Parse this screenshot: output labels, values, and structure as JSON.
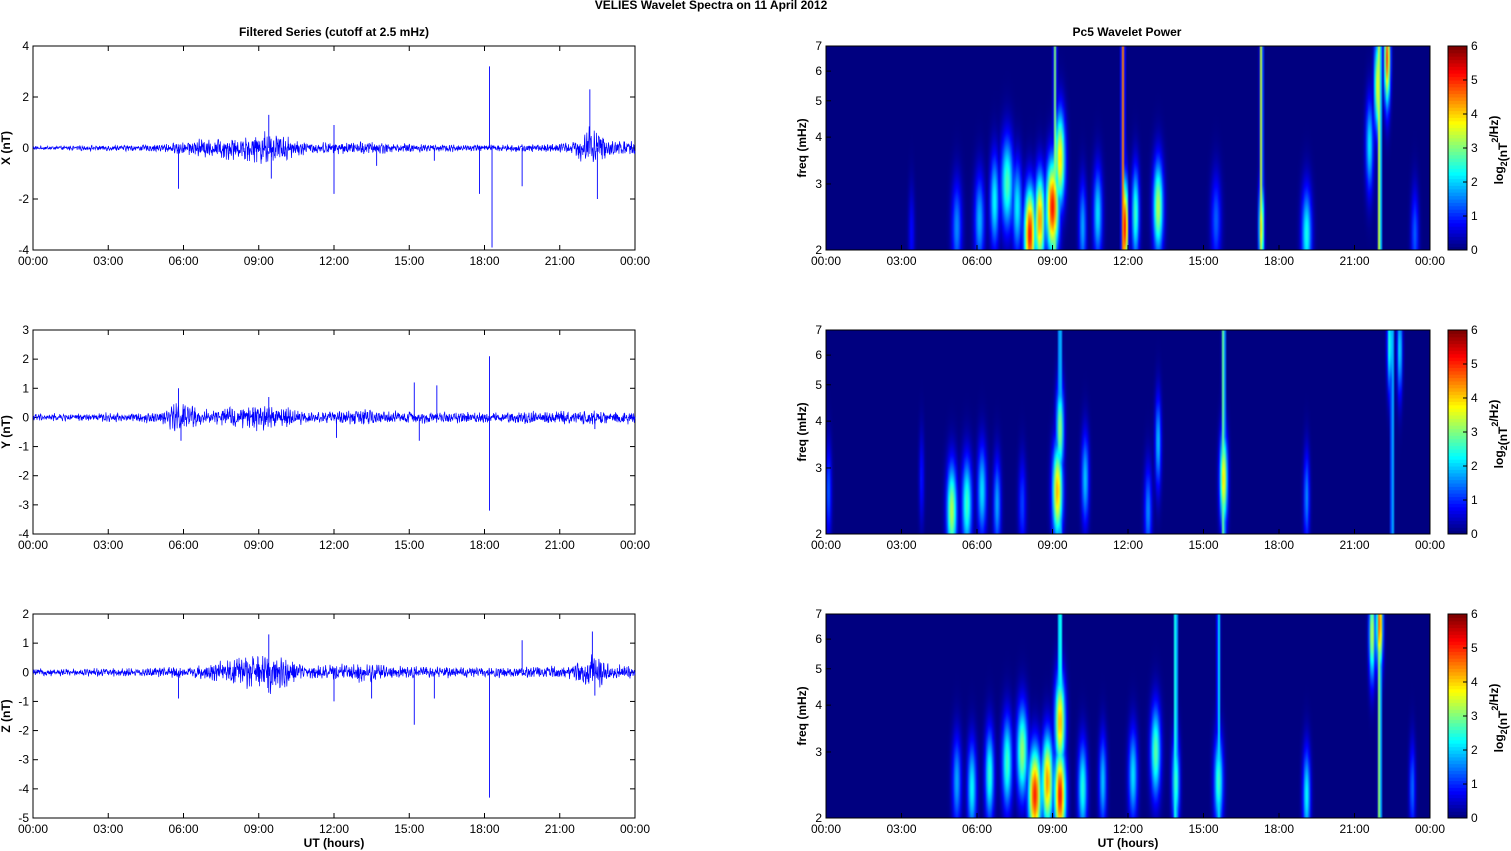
{
  "figure": {
    "title": "VELIES Wavelet Spectra on 11 April     2012"
  },
  "time_ticks": [
    "00:00",
    "03:00",
    "06:00",
    "09:00",
    "12:00",
    "15:00",
    "18:00",
    "21:00",
    "00:00"
  ],
  "chart_data": [
    {
      "type": "line",
      "panel": "X-series",
      "title": "Filtered Series (cutoff at 2.5 mHz)",
      "xlabel": "",
      "ylabel": "X (nT)",
      "ylim": [
        -4,
        4
      ],
      "yticks": [
        -4,
        -2,
        0,
        2,
        4
      ],
      "xlim_hours": [
        0,
        24
      ],
      "series": [
        {
          "color": "#0000ff",
          "noise_amp": 0.05
        }
      ],
      "envelope": [
        [
          0,
          0.05
        ],
        [
          5,
          0.1
        ],
        [
          6.5,
          0.25
        ],
        [
          8,
          0.35
        ],
        [
          9.5,
          0.5
        ],
        [
          11,
          0.15
        ],
        [
          13,
          0.2
        ],
        [
          15,
          0.12
        ],
        [
          18,
          0.1
        ],
        [
          21.5,
          0.15
        ],
        [
          22.2,
          0.7
        ],
        [
          23,
          0.25
        ],
        [
          24,
          0.2
        ]
      ],
      "spikes": [
        [
          5.8,
          -1.6
        ],
        [
          9.4,
          1.3
        ],
        [
          9.5,
          -1.2
        ],
        [
          12,
          -1.8
        ],
        [
          12,
          0.9
        ],
        [
          13.7,
          -0.7
        ],
        [
          16,
          -0.5
        ],
        [
          17.8,
          -1.8
        ],
        [
          18.2,
          3.2
        ],
        [
          18.3,
          -3.9
        ],
        [
          19.5,
          -1.5
        ],
        [
          22.2,
          2.3
        ],
        [
          22.5,
          -2.0
        ]
      ]
    },
    {
      "type": "line",
      "panel": "Y-series",
      "xlabel": "",
      "ylabel": "Y (nT)",
      "ylim": [
        -4,
        3
      ],
      "yticks": [
        -4,
        -3,
        -2,
        -1,
        0,
        1,
        2,
        3
      ],
      "xlim_hours": [
        0,
        24
      ],
      "series": [
        {
          "color": "#0000ff",
          "noise_amp": 0.08
        }
      ],
      "envelope": [
        [
          0,
          0.08
        ],
        [
          5,
          0.12
        ],
        [
          5.8,
          0.4
        ],
        [
          7,
          0.2
        ],
        [
          9.4,
          0.35
        ],
        [
          11,
          0.12
        ],
        [
          13,
          0.2
        ],
        [
          15,
          0.15
        ],
        [
          18,
          0.12
        ],
        [
          22.5,
          0.2
        ],
        [
          24,
          0.15
        ]
      ],
      "spikes": [
        [
          5.8,
          1.0
        ],
        [
          5.9,
          -0.8
        ],
        [
          9.4,
          0.7
        ],
        [
          12.1,
          -0.7
        ],
        [
          15.2,
          1.2
        ],
        [
          15.4,
          -0.8
        ],
        [
          16.1,
          1.1
        ],
        [
          18.2,
          2.1
        ],
        [
          18.2,
          -3.2
        ],
        [
          22.4,
          -0.4
        ]
      ]
    },
    {
      "type": "line",
      "panel": "Z-series",
      "xlabel": "UT (hours)",
      "ylabel": "Z (nT)",
      "ylim": [
        -5,
        2
      ],
      "yticks": [
        -5,
        -4,
        -3,
        -2,
        -1,
        0,
        1,
        2
      ],
      "xlim_hours": [
        0,
        24
      ],
      "series": [
        {
          "color": "#0000ff",
          "noise_amp": 0.07
        }
      ],
      "envelope": [
        [
          0,
          0.07
        ],
        [
          5,
          0.12
        ],
        [
          7,
          0.2
        ],
        [
          9.4,
          0.55
        ],
        [
          11,
          0.15
        ],
        [
          13,
          0.25
        ],
        [
          15,
          0.15
        ],
        [
          18,
          0.12
        ],
        [
          21.5,
          0.15
        ],
        [
          22.3,
          0.55
        ],
        [
          23,
          0.2
        ],
        [
          24,
          0.15
        ]
      ],
      "spikes": [
        [
          5.8,
          -0.9
        ],
        [
          9.4,
          1.3
        ],
        [
          9.4,
          -0.7
        ],
        [
          12,
          -1.0
        ],
        [
          13.5,
          -0.9
        ],
        [
          15.2,
          -1.8
        ],
        [
          16,
          -0.9
        ],
        [
          18.2,
          -4.3
        ],
        [
          19.5,
          1.1
        ],
        [
          22.3,
          1.4
        ],
        [
          22.4,
          -0.8
        ]
      ]
    },
    {
      "type": "heatmap",
      "panel": "X-wavelet",
      "title": "Pc5 Wavelet Power",
      "xlabel": "",
      "ylabel": "freq (mHz)",
      "ylim": [
        2,
        7
      ],
      "yscale": "log",
      "yticks": [
        2,
        3,
        4,
        5,
        6,
        7
      ],
      "xlim_hours": [
        0,
        24
      ],
      "colorbar": {
        "label": "log2(nT^2/Hz)",
        "label_main": "log",
        "label_sub": "2",
        "label_tail": "(nT",
        "label_sup": "2",
        "label_end": "/Hz)",
        "range": [
          0,
          6
        ],
        "ticks": [
          0,
          1,
          2,
          3,
          4,
          5,
          6
        ]
      },
      "blobs": [
        [
          3.4,
          2.2,
          0.12,
          0.9
        ],
        [
          5.2,
          2.3,
          0.2,
          1.8
        ],
        [
          6.1,
          2.4,
          0.2,
          2.1
        ],
        [
          6.7,
          2.7,
          0.18,
          2.6
        ],
        [
          7.2,
          3.0,
          0.25,
          3.1
        ],
        [
          7.6,
          2.6,
          0.2,
          2.5
        ],
        [
          8.1,
          2.2,
          0.22,
          5.9
        ],
        [
          8.5,
          2.4,
          0.2,
          5.0
        ],
        [
          9.0,
          2.6,
          0.25,
          5.9
        ],
        [
          9.3,
          3.5,
          0.2,
          4.5
        ],
        [
          10.2,
          2.3,
          0.15,
          2.0
        ],
        [
          10.8,
          2.5,
          0.18,
          2.4
        ],
        [
          11.9,
          2.3,
          0.1,
          6.0
        ],
        [
          12.3,
          2.5,
          0.15,
          3.0
        ],
        [
          13.2,
          2.6,
          0.2,
          3.8
        ],
        [
          15.5,
          2.4,
          0.2,
          1.5
        ],
        [
          17.3,
          2.3,
          0.1,
          4.5
        ],
        [
          19.1,
          2.2,
          0.2,
          2.7
        ],
        [
          21.6,
          3.8,
          0.15,
          2.5
        ],
        [
          21.9,
          5.5,
          0.12,
          4.0
        ],
        [
          22.3,
          6.5,
          0.12,
          5.5
        ],
        [
          23.4,
          2.2,
          0.15,
          1.5
        ]
      ],
      "streaks": [
        [
          11.8,
          6.0
        ],
        [
          17.3,
          4.8
        ],
        [
          9.1,
          4.0
        ],
        [
          22.0,
          5.5
        ]
      ]
    },
    {
      "type": "heatmap",
      "panel": "Y-wavelet",
      "xlabel": "",
      "ylabel": "freq (mHz)",
      "ylim": [
        2,
        7
      ],
      "yscale": "log",
      "yticks": [
        2,
        3,
        4,
        5,
        6,
        7
      ],
      "xlim_hours": [
        0,
        24
      ],
      "colorbar": {
        "label": "log2(nT^2/Hz)",
        "range": [
          0,
          6
        ],
        "ticks": [
          0,
          1,
          2,
          3,
          4,
          5,
          6
        ]
      },
      "blobs": [
        [
          0.1,
          2.6,
          0.12,
          1.5
        ],
        [
          3.8,
          2.8,
          0.1,
          1.0
        ],
        [
          5.0,
          2.3,
          0.2,
          3.8
        ],
        [
          5.6,
          2.4,
          0.2,
          3.0
        ],
        [
          6.2,
          2.6,
          0.18,
          2.4
        ],
        [
          6.8,
          2.4,
          0.15,
          2.0
        ],
        [
          7.8,
          2.4,
          0.15,
          1.3
        ],
        [
          9.2,
          2.6,
          0.2,
          4.8
        ],
        [
          9.3,
          3.8,
          0.15,
          3.6
        ],
        [
          10.3,
          2.8,
          0.15,
          2.2
        ],
        [
          12.8,
          2.3,
          0.15,
          1.8
        ],
        [
          13.2,
          3.5,
          0.12,
          2.2
        ],
        [
          15.8,
          2.8,
          0.15,
          4.5
        ],
        [
          19.1,
          2.5,
          0.12,
          1.8
        ],
        [
          22.4,
          6.4,
          0.1,
          3.0
        ],
        [
          22.8,
          6.2,
          0.1,
          2.5
        ]
      ],
      "streaks": [
        [
          15.8,
          4.5
        ],
        [
          9.3,
          3.5
        ],
        [
          22.5,
          3.0
        ]
      ]
    },
    {
      "type": "heatmap",
      "panel": "Z-wavelet",
      "xlabel": "UT (hours)",
      "ylabel": "freq (mHz)",
      "ylim": [
        2,
        7
      ],
      "yscale": "log",
      "yticks": [
        2,
        3,
        4,
        5,
        6,
        7
      ],
      "xlim_hours": [
        0,
        24
      ],
      "colorbar": {
        "label": "log2(nT^2/Hz)",
        "range": [
          0,
          6
        ],
        "ticks": [
          0,
          1,
          2,
          3,
          4,
          5,
          6
        ]
      },
      "blobs": [
        [
          5.2,
          2.5,
          0.18,
          2.0
        ],
        [
          5.8,
          2.4,
          0.18,
          2.6
        ],
        [
          6.5,
          2.6,
          0.18,
          2.9
        ],
        [
          7.2,
          2.8,
          0.2,
          3.0
        ],
        [
          7.8,
          3.0,
          0.22,
          3.6
        ],
        [
          8.3,
          2.3,
          0.25,
          5.8
        ],
        [
          8.8,
          2.5,
          0.22,
          5.0
        ],
        [
          9.3,
          2.3,
          0.22,
          5.9
        ],
        [
          9.3,
          3.6,
          0.2,
          4.8
        ],
        [
          10.2,
          2.4,
          0.18,
          2.8
        ],
        [
          11.0,
          2.5,
          0.15,
          2.2
        ],
        [
          12.2,
          2.6,
          0.18,
          2.4
        ],
        [
          13.1,
          3.0,
          0.2,
          3.2
        ],
        [
          13.9,
          2.5,
          0.15,
          3.0
        ],
        [
          15.6,
          2.5,
          0.18,
          3.0
        ],
        [
          19.1,
          2.3,
          0.15,
          2.6
        ],
        [
          21.7,
          6.2,
          0.12,
          4.0
        ],
        [
          22.0,
          6.6,
          0.12,
          5.5
        ],
        [
          23.3,
          2.4,
          0.12,
          1.6
        ]
      ],
      "streaks": [
        [
          13.9,
          4.2
        ],
        [
          9.3,
          4.5
        ],
        [
          15.6,
          3.0
        ],
        [
          22.0,
          5.0
        ]
      ]
    }
  ]
}
